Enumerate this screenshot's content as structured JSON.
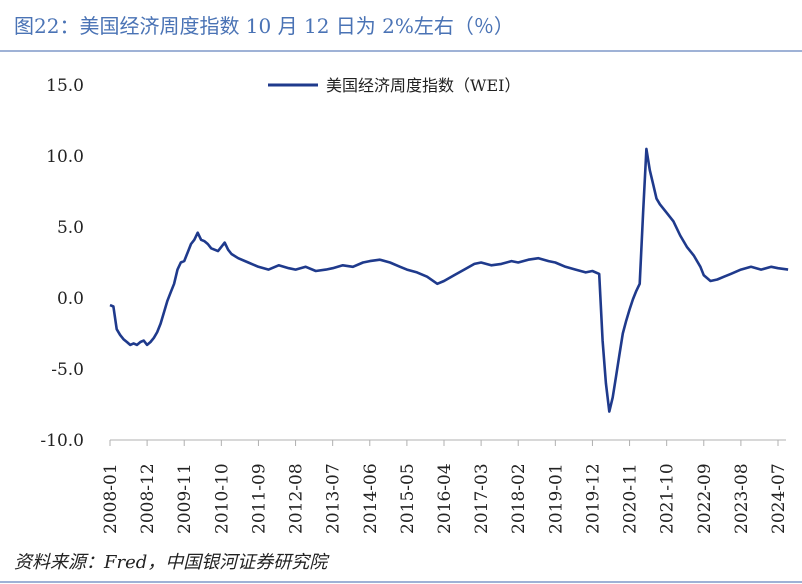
{
  "header": {
    "title": "图22：美国经济周度指数 10 月 12 日为 2%左右（％）"
  },
  "footer": {
    "source": "资料来源：Fred，中国银河证券研究院"
  },
  "chart_data": {
    "type": "line",
    "title": "图22：美国经济周度指数 10 月 12 日为 2%左右（％）",
    "xlabel": "",
    "ylabel": "",
    "ylim": [
      -10,
      15
    ],
    "yticks": [
      "15.0",
      "10.0",
      "5.0",
      "0.0",
      "-5.0",
      "-10.0"
    ],
    "xticks": [
      "2008-01",
      "2008-12",
      "2009-11",
      "2010-10",
      "2011-09",
      "2012-08",
      "2013-07",
      "2014-06",
      "2015-05",
      "2016-04",
      "2017-03",
      "2018-02",
      "2019-01",
      "2019-12",
      "2020-11",
      "2021-10",
      "2022-09",
      "2023-08",
      "2024-07"
    ],
    "legend_position": "top-center",
    "color": "#1f3a8c",
    "series": [
      {
        "name": "美国经济周度指数（WEI）",
        "points": [
          [
            "2008-01",
            -0.5
          ],
          [
            "2008-02",
            -0.6
          ],
          [
            "2008-03",
            -2.2
          ],
          [
            "2008-04",
            -2.6
          ],
          [
            "2008-05",
            -2.9
          ],
          [
            "2008-06",
            -3.1
          ],
          [
            "2008-07",
            -3.3
          ],
          [
            "2008-08",
            -3.2
          ],
          [
            "2008-09",
            -3.3
          ],
          [
            "2008-10",
            -3.1
          ],
          [
            "2008-11",
            -3.0
          ],
          [
            "2008-12",
            -3.3
          ],
          [
            "2009-01",
            -3.1
          ],
          [
            "2009-02",
            -2.8
          ],
          [
            "2009-03",
            -2.4
          ],
          [
            "2009-04",
            -1.8
          ],
          [
            "2009-05",
            -1.0
          ],
          [
            "2009-06",
            -0.2
          ],
          [
            "2009-07",
            0.4
          ],
          [
            "2009-08",
            1.0
          ],
          [
            "2009-09",
            2.0
          ],
          [
            "2009-10",
            2.5
          ],
          [
            "2009-11",
            2.6
          ],
          [
            "2009-12",
            3.2
          ],
          [
            "2010-01",
            3.8
          ],
          [
            "2010-02",
            4.1
          ],
          [
            "2010-03",
            4.6
          ],
          [
            "2010-04",
            4.1
          ],
          [
            "2010-05",
            4.0
          ],
          [
            "2010-06",
            3.8
          ],
          [
            "2010-07",
            3.5
          ],
          [
            "2010-08",
            3.4
          ],
          [
            "2010-09",
            3.3
          ],
          [
            "2010-10",
            3.6
          ],
          [
            "2010-11",
            3.9
          ],
          [
            "2010-12",
            3.4
          ],
          [
            "2011-01",
            3.1
          ],
          [
            "2011-03",
            2.8
          ],
          [
            "2011-06",
            2.5
          ],
          [
            "2011-09",
            2.2
          ],
          [
            "2011-12",
            2.0
          ],
          [
            "2012-03",
            2.3
          ],
          [
            "2012-06",
            2.1
          ],
          [
            "2012-08",
            2.0
          ],
          [
            "2012-11",
            2.2
          ],
          [
            "2013-02",
            1.9
          ],
          [
            "2013-05",
            2.0
          ],
          [
            "2013-07",
            2.1
          ],
          [
            "2013-10",
            2.3
          ],
          [
            "2014-01",
            2.2
          ],
          [
            "2014-04",
            2.5
          ],
          [
            "2014-06",
            2.6
          ],
          [
            "2014-09",
            2.7
          ],
          [
            "2014-12",
            2.5
          ],
          [
            "2015-03",
            2.2
          ],
          [
            "2015-05",
            2.0
          ],
          [
            "2015-08",
            1.8
          ],
          [
            "2015-11",
            1.5
          ],
          [
            "2016-02",
            1.0
          ],
          [
            "2016-04",
            1.2
          ],
          [
            "2016-07",
            1.6
          ],
          [
            "2016-10",
            2.0
          ],
          [
            "2017-01",
            2.4
          ],
          [
            "2017-03",
            2.5
          ],
          [
            "2017-06",
            2.3
          ],
          [
            "2017-09",
            2.4
          ],
          [
            "2017-12",
            2.6
          ],
          [
            "2018-02",
            2.5
          ],
          [
            "2018-05",
            2.7
          ],
          [
            "2018-08",
            2.8
          ],
          [
            "2018-11",
            2.6
          ],
          [
            "2019-01",
            2.5
          ],
          [
            "2019-04",
            2.2
          ],
          [
            "2019-07",
            2.0
          ],
          [
            "2019-10",
            1.8
          ],
          [
            "2019-12",
            1.9
          ],
          [
            "2020-02",
            1.7
          ],
          [
            "2020-03",
            -3.0
          ],
          [
            "2020-04",
            -6.0
          ],
          [
            "2020-05",
            -8.0
          ],
          [
            "2020-06",
            -7.0
          ],
          [
            "2020-07",
            -5.5
          ],
          [
            "2020-08",
            -4.0
          ],
          [
            "2020-09",
            -2.5
          ],
          [
            "2020-10",
            -1.6
          ],
          [
            "2020-11",
            -0.8
          ],
          [
            "2020-12",
            -0.1
          ],
          [
            "2021-01",
            0.5
          ],
          [
            "2021-02",
            1.0
          ],
          [
            "2021-03",
            6.0
          ],
          [
            "2021-04",
            10.5
          ],
          [
            "2021-05",
            9.0
          ],
          [
            "2021-06",
            8.0
          ],
          [
            "2021-07",
            7.0
          ],
          [
            "2021-08",
            6.6
          ],
          [
            "2021-10",
            6.0
          ],
          [
            "2021-12",
            5.4
          ],
          [
            "2022-02",
            4.4
          ],
          [
            "2022-04",
            3.6
          ],
          [
            "2022-06",
            3.0
          ],
          [
            "2022-08",
            2.2
          ],
          [
            "2022-09",
            1.6
          ],
          [
            "2022-11",
            1.2
          ],
          [
            "2023-01",
            1.3
          ],
          [
            "2023-03",
            1.5
          ],
          [
            "2023-05",
            1.7
          ],
          [
            "2023-08",
            2.0
          ],
          [
            "2023-11",
            2.2
          ],
          [
            "2024-02",
            2.0
          ],
          [
            "2024-05",
            2.2
          ],
          [
            "2024-07",
            2.1
          ],
          [
            "2024-10",
            2.0
          ]
        ]
      }
    ]
  }
}
